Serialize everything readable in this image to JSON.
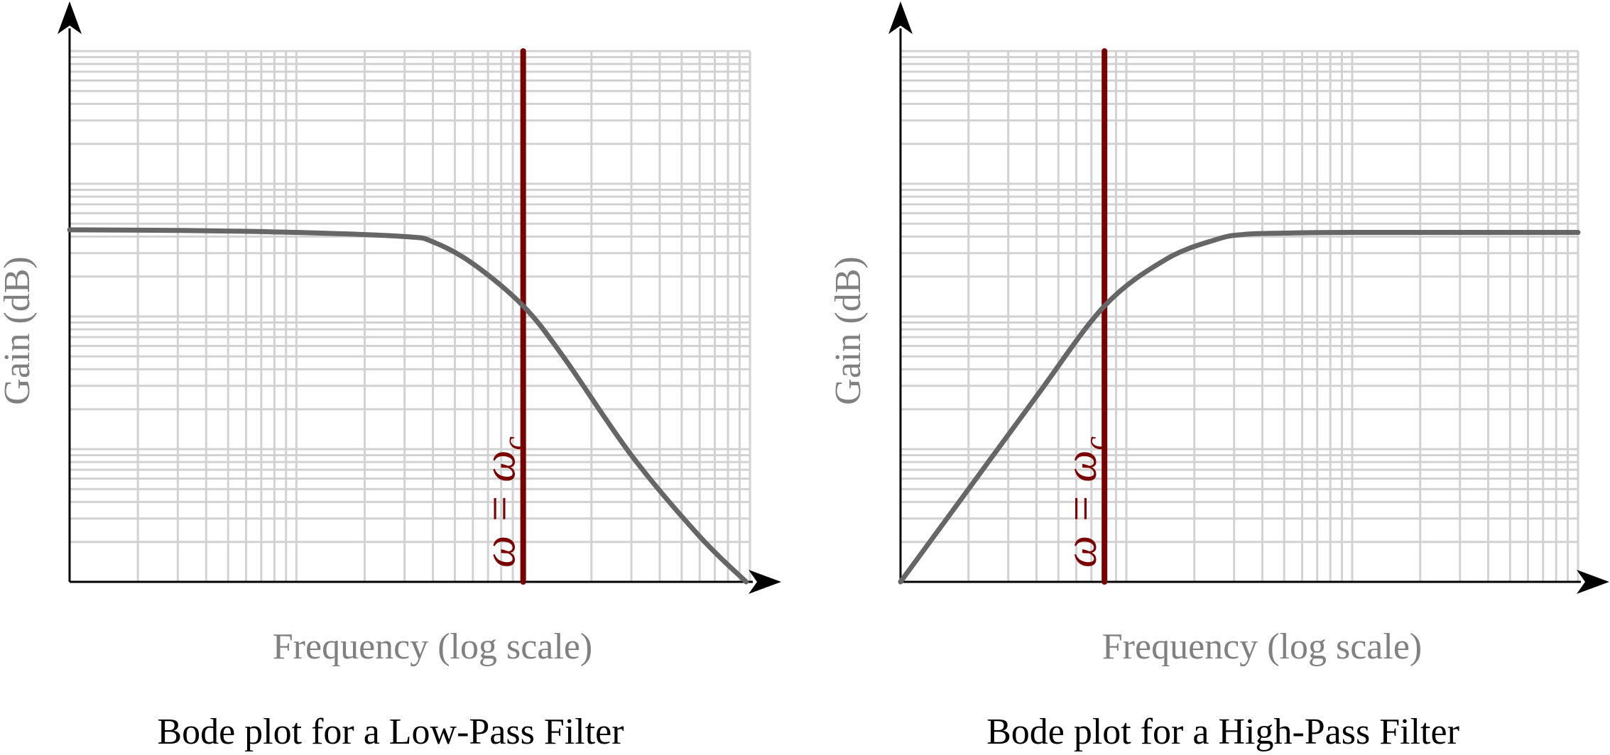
{
  "chart_data": [
    {
      "type": "line",
      "caption": "Bode plot for a Low-Pass Filter",
      "xlabel": "Frequency (log scale)",
      "ylabel": "Gain (dB)",
      "x_scale": "log",
      "y_scale": "log",
      "grid": true,
      "cutoff_label": "ω = ω",
      "cutoff_label_subscript": "c",
      "xlim": [
        1,
        1000
      ],
      "ylim": [
        0.1,
        1000
      ],
      "cutoff_x": 100,
      "series": [
        {
          "x": [
            1,
            3,
            10,
            30,
            40,
            60,
            100,
            150,
            300,
            600,
            962
          ],
          "y": [
            45,
            44.5,
            43,
            40,
            36.5,
            25,
            12,
            5,
            0.9,
            0.22,
            0.1
          ]
        }
      ]
    },
    {
      "type": "line",
      "caption": "Bode plot for a High-Pass Filter",
      "xlabel": "Frequency (log scale)",
      "ylabel": "Gain (dB)",
      "x_scale": "log",
      "y_scale": "log",
      "grid": true,
      "cutoff_label": "ω = ω",
      "cutoff_label_subscript": "c",
      "xlim": [
        1,
        1000
      ],
      "ylim": [
        0.1,
        1000
      ],
      "cutoff_x": 8,
      "series": [
        {
          "x": [
            1,
            2,
            4,
            8,
            15,
            25,
            33,
            50,
            100,
            1000
          ],
          "y": [
            0.1,
            0.5,
            2.5,
            12,
            27,
            38,
            41.5,
            42.5,
            43,
            43
          ]
        }
      ]
    }
  ],
  "colors": {
    "curve": "#666666",
    "cutoff": "#7a0000",
    "grid": "#d2d2d2",
    "axis": "#000000",
    "axis_label": "#808080",
    "caption": "#000000"
  }
}
